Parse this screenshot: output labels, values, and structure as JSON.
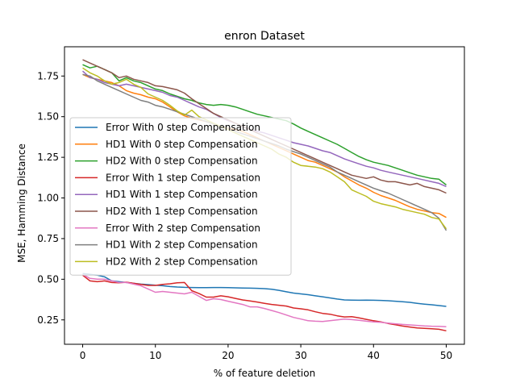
{
  "chart_data": {
    "type": "line",
    "title": "enron Dataset",
    "xlabel": "% of feature deletion",
    "ylabel": "MSE, Hamming Distance",
    "xlim": [
      -2.5,
      52.5
    ],
    "ylim": [
      0.1,
      1.93
    ],
    "xticks": [
      0,
      10,
      20,
      30,
      40,
      50
    ],
    "yticks": [
      0.25,
      0.5,
      0.75,
      1.0,
      1.25,
      1.5,
      1.75
    ],
    "ytick_labels": [
      "0.25",
      "0.50",
      "0.75",
      "1.00",
      "1.25",
      "1.50",
      "1.75"
    ],
    "grid": false,
    "legend_position": "center-left",
    "x": [
      0,
      1,
      2,
      3,
      4,
      5,
      6,
      7,
      8,
      9,
      10,
      11,
      12,
      13,
      14,
      15,
      16,
      17,
      18,
      19,
      20,
      21,
      22,
      23,
      24,
      25,
      26,
      27,
      28,
      29,
      30,
      31,
      32,
      33,
      34,
      35,
      36,
      37,
      38,
      39,
      40,
      41,
      42,
      43,
      44,
      45,
      46,
      47,
      48,
      49,
      50
    ],
    "series": [
      {
        "name": "Error With 0 step Compensation",
        "color": "#1f77b4",
        "values": [
          0.535,
          0.53,
          0.525,
          0.515,
          0.49,
          0.485,
          0.48,
          0.475,
          0.47,
          0.467,
          0.463,
          0.46,
          0.455,
          0.452,
          0.45,
          0.449,
          0.448,
          0.448,
          0.449,
          0.449,
          0.448,
          0.447,
          0.446,
          0.445,
          0.444,
          0.442,
          0.438,
          0.432,
          0.423,
          0.415,
          0.41,
          0.405,
          0.398,
          0.392,
          0.385,
          0.378,
          0.373,
          0.372,
          0.371,
          0.372,
          0.371,
          0.37,
          0.368,
          0.365,
          0.362,
          0.358,
          0.352,
          0.347,
          0.343,
          0.338,
          0.333
        ]
      },
      {
        "name": "HD1 With 0 step Compensation",
        "color": "#ff7f0e",
        "values": [
          1.76,
          1.74,
          1.73,
          1.72,
          1.71,
          1.69,
          1.66,
          1.645,
          1.635,
          1.62,
          1.61,
          1.59,
          1.56,
          1.53,
          1.505,
          1.49,
          1.48,
          1.47,
          1.455,
          1.44,
          1.43,
          1.42,
          1.41,
          1.39,
          1.37,
          1.35,
          1.33,
          1.31,
          1.29,
          1.27,
          1.25,
          1.23,
          1.22,
          1.2,
          1.18,
          1.16,
          1.13,
          1.105,
          1.08,
          1.06,
          1.035,
          1.015,
          1.0,
          0.985,
          0.965,
          0.945,
          0.93,
          0.92,
          0.91,
          0.905,
          0.88
        ]
      },
      {
        "name": "HD2 With 0 step Compensation",
        "color": "#2ca02c",
        "values": [
          1.82,
          1.8,
          1.81,
          1.79,
          1.77,
          1.72,
          1.74,
          1.72,
          1.71,
          1.69,
          1.67,
          1.66,
          1.64,
          1.625,
          1.61,
          1.6,
          1.585,
          1.575,
          1.57,
          1.575,
          1.57,
          1.56,
          1.545,
          1.53,
          1.515,
          1.505,
          1.495,
          1.485,
          1.475,
          1.455,
          1.43,
          1.41,
          1.39,
          1.37,
          1.35,
          1.33,
          1.305,
          1.28,
          1.255,
          1.235,
          1.22,
          1.21,
          1.2,
          1.185,
          1.17,
          1.155,
          1.14,
          1.13,
          1.12,
          1.115,
          1.08
        ]
      },
      {
        "name": "Error With 1 step Compensation",
        "color": "#d62728",
        "values": [
          0.525,
          0.49,
          0.485,
          0.49,
          0.48,
          0.478,
          0.482,
          0.475,
          0.468,
          0.462,
          0.462,
          0.468,
          0.472,
          0.478,
          0.48,
          0.43,
          0.412,
          0.39,
          0.39,
          0.398,
          0.392,
          0.382,
          0.373,
          0.367,
          0.36,
          0.352,
          0.345,
          0.34,
          0.335,
          0.323,
          0.318,
          0.312,
          0.3,
          0.29,
          0.285,
          0.275,
          0.268,
          0.27,
          0.262,
          0.253,
          0.245,
          0.238,
          0.228,
          0.22,
          0.212,
          0.206,
          0.2,
          0.198,
          0.195,
          0.192,
          0.183
        ]
      },
      {
        "name": "HD1 With 1 step Compensation",
        "color": "#9467bd",
        "values": [
          1.78,
          1.74,
          1.73,
          1.71,
          1.7,
          1.69,
          1.7,
          1.69,
          1.68,
          1.67,
          1.66,
          1.65,
          1.63,
          1.62,
          1.6,
          1.58,
          1.56,
          1.545,
          1.52,
          1.495,
          1.475,
          1.46,
          1.44,
          1.42,
          1.41,
          1.4,
          1.385,
          1.37,
          1.355,
          1.34,
          1.33,
          1.32,
          1.305,
          1.29,
          1.28,
          1.26,
          1.24,
          1.225,
          1.21,
          1.195,
          1.185,
          1.17,
          1.16,
          1.15,
          1.14,
          1.13,
          1.12,
          1.11,
          1.1,
          1.09,
          1.07
        ]
      },
      {
        "name": "HD2 With 1 step Compensation",
        "color": "#8c564b",
        "values": [
          1.85,
          1.83,
          1.81,
          1.79,
          1.77,
          1.74,
          1.75,
          1.73,
          1.72,
          1.71,
          1.69,
          1.685,
          1.675,
          1.665,
          1.645,
          1.61,
          1.58,
          1.55,
          1.52,
          1.5,
          1.48,
          1.46,
          1.44,
          1.42,
          1.4,
          1.38,
          1.36,
          1.34,
          1.32,
          1.3,
          1.28,
          1.26,
          1.24,
          1.22,
          1.2,
          1.18,
          1.16,
          1.14,
          1.13,
          1.12,
          1.13,
          1.11,
          1.1,
          1.1,
          1.09,
          1.08,
          1.09,
          1.07,
          1.06,
          1.05,
          1.03
        ]
      },
      {
        "name": "Error With 2 step Compensation",
        "color": "#e377c2",
        "values": [
          0.53,
          0.505,
          0.5,
          0.5,
          0.49,
          0.48,
          0.48,
          0.47,
          0.46,
          0.44,
          0.42,
          0.425,
          0.42,
          0.415,
          0.41,
          0.42,
          0.395,
          0.37,
          0.38,
          0.375,
          0.365,
          0.355,
          0.345,
          0.33,
          0.33,
          0.32,
          0.308,
          0.295,
          0.28,
          0.265,
          0.255,
          0.245,
          0.242,
          0.24,
          0.245,
          0.25,
          0.255,
          0.252,
          0.248,
          0.242,
          0.238,
          0.235,
          0.23,
          0.226,
          0.222,
          0.219,
          0.216,
          0.213,
          0.211,
          0.21,
          0.208
        ]
      },
      {
        "name": "HD1 With 2 step Compensation",
        "color": "#7f7f7f",
        "values": [
          1.76,
          1.75,
          1.72,
          1.7,
          1.68,
          1.66,
          1.64,
          1.62,
          1.6,
          1.59,
          1.57,
          1.56,
          1.545,
          1.53,
          1.515,
          1.5,
          1.485,
          1.47,
          1.455,
          1.44,
          1.425,
          1.41,
          1.395,
          1.38,
          1.365,
          1.35,
          1.335,
          1.32,
          1.3,
          1.285,
          1.27,
          1.25,
          1.23,
          1.21,
          1.19,
          1.16,
          1.14,
          1.12,
          1.1,
          1.08,
          1.06,
          1.045,
          1.03,
          1.01,
          0.99,
          0.97,
          0.95,
          0.93,
          0.91,
          0.875,
          0.8
        ]
      },
      {
        "name": "HD2 With 2 step Compensation",
        "color": "#bcbd22",
        "values": [
          1.8,
          1.77,
          1.75,
          1.72,
          1.7,
          1.71,
          1.73,
          1.7,
          1.68,
          1.64,
          1.62,
          1.6,
          1.57,
          1.535,
          1.51,
          1.54,
          1.5,
          1.48,
          1.46,
          1.44,
          1.42,
          1.4,
          1.38,
          1.36,
          1.34,
          1.32,
          1.3,
          1.27,
          1.25,
          1.22,
          1.2,
          1.195,
          1.19,
          1.18,
          1.16,
          1.13,
          1.1,
          1.05,
          1.03,
          1.01,
          0.98,
          0.965,
          0.955,
          0.945,
          0.93,
          0.92,
          0.91,
          0.9,
          0.88,
          0.87,
          0.81
        ]
      }
    ]
  }
}
